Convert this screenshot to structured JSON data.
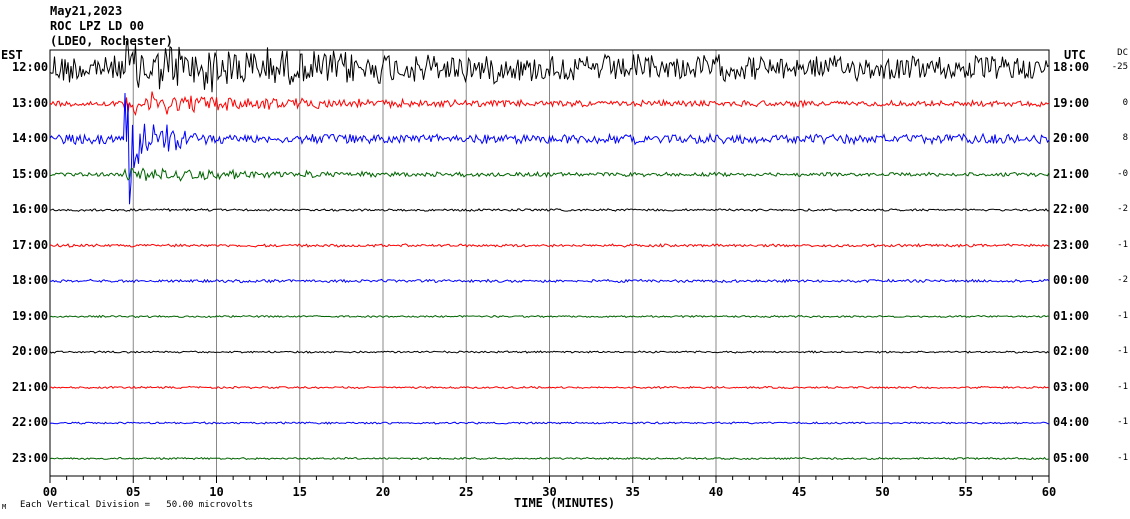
{
  "header": {
    "date": "May21,2023",
    "station": "ROC LPZ LD 00",
    "network": "(LDEO, Rochester)"
  },
  "left_axis_label": "EST",
  "right_axis_label": "UTC",
  "dc_label": "DC",
  "footer": {
    "scale_note": "Each Vertical Division =   50.00 microvolts",
    "corner_mark": "M"
  },
  "chart_data": {
    "type": "line",
    "title": "May21,2023 ROC LPZ LD 00 (LDEO, Rochester)",
    "xlabel": "TIME (MINUTES)",
    "xlim": [
      0,
      60
    ],
    "x_ticks": [
      "00",
      "05",
      "10",
      "15",
      "20",
      "25",
      "30",
      "35",
      "40",
      "45",
      "50",
      "55",
      "60"
    ],
    "grid": true,
    "units_per_division_microvolts": 50.0,
    "colors": [
      "#000000",
      "#ff0000",
      "#0000ff",
      "#006400"
    ],
    "rows": [
      {
        "est": "12:00",
        "utc": "18:00",
        "dc": "-25",
        "noise": 9,
        "event": 30
      },
      {
        "est": "13:00",
        "utc": "19:00",
        "dc": "0",
        "noise": 3,
        "event": 20
      },
      {
        "est": "14:00",
        "utc": "20:00",
        "dc": "8",
        "noise": 5,
        "event": 160
      },
      {
        "est": "15:00",
        "utc": "21:00",
        "dc": "-0",
        "noise": 2,
        "event": 12
      },
      {
        "est": "16:00",
        "utc": "22:00",
        "dc": "-2",
        "noise": 1.2,
        "event": 0
      },
      {
        "est": "17:00",
        "utc": "23:00",
        "dc": "-1",
        "noise": 1.5,
        "event": 0
      },
      {
        "est": "18:00",
        "utc": "00:00",
        "dc": "-2",
        "noise": 1.5,
        "event": 0
      },
      {
        "est": "19:00",
        "utc": "01:00",
        "dc": "-1",
        "noise": 1,
        "event": 0
      },
      {
        "est": "20:00",
        "utc": "02:00",
        "dc": "-1",
        "noise": 1,
        "event": 0
      },
      {
        "est": "21:00",
        "utc": "03:00",
        "dc": "-1",
        "noise": 1,
        "event": 0
      },
      {
        "est": "22:00",
        "utc": "04:00",
        "dc": "-1",
        "noise": 1,
        "event": 0
      },
      {
        "est": "23:00",
        "utc": "05:00",
        "dc": "-1",
        "noise": 1,
        "event": 0
      }
    ]
  }
}
